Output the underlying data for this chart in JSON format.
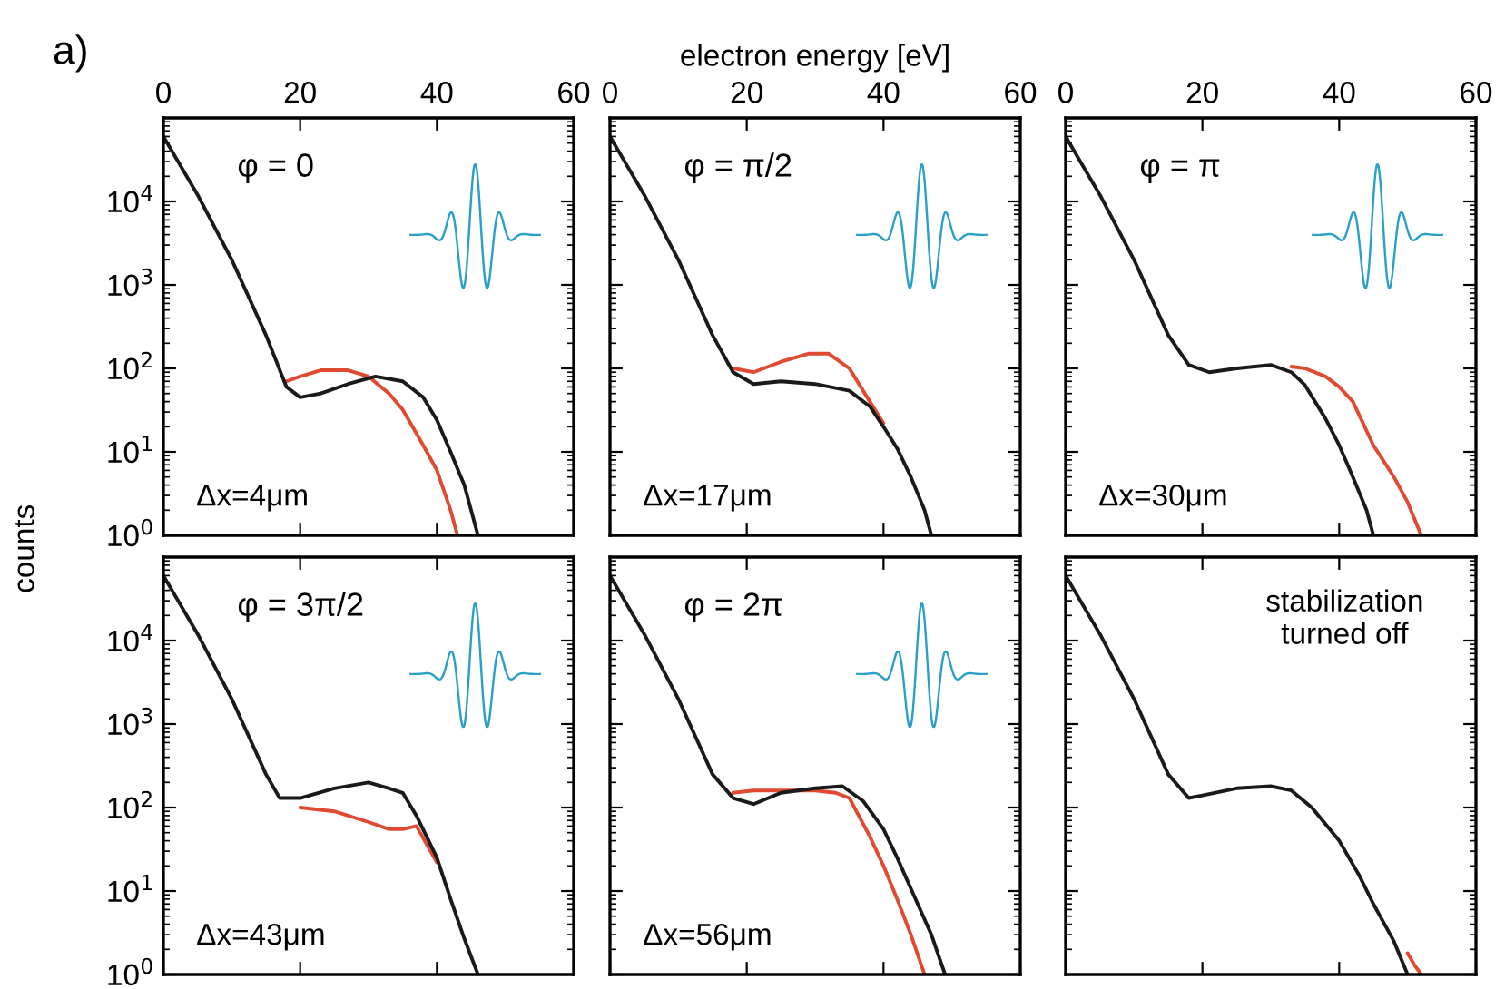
{
  "chart_data": [
    {
      "type": "line",
      "annotations": [
        "φ = 0",
        "Δx=4μm",
        "a)"
      ],
      "xlim": [
        0,
        60
      ],
      "xticks": [
        0,
        20,
        40,
        60
      ],
      "ylim": [
        1,
        100000
      ],
      "log": "y",
      "yticks": [
        {
          "value": 1,
          "label": "10$^{0}$"
        },
        {
          "value": 10,
          "label": "10$^{1}$"
        },
        {
          "value": 100,
          "label": "10$^{2}$"
        },
        {
          "value": 1000,
          "label": "10$^{3}$"
        },
        {
          "value": 10000,
          "label": "10$^{4}$"
        }
      ],
      "series": [
        {
          "color": "#e04a30",
          "x": [
            18,
            20,
            23,
            27,
            30,
            33,
            35,
            38,
            40,
            42,
            43
          ],
          "values": [
            70,
            80,
            95,
            95,
            80,
            50,
            32,
            12,
            6,
            2,
            1
          ]
        },
        {
          "color": "#1a1a1a",
          "x": [
            0,
            5,
            10,
            15,
            18,
            20,
            23,
            27,
            31,
            35,
            38,
            40,
            42,
            44,
            46
          ],
          "values": [
            60000,
            12000,
            2000,
            250,
            60,
            45,
            50,
            65,
            80,
            70,
            45,
            24,
            10,
            4,
            1
          ]
        }
      ]
    },
    {
      "type": "line",
      "xlabel": "electron energy [eV]",
      "annotations": [
        "φ = π/2",
        "Δx=17μm"
      ],
      "xlim": [
        0,
        60
      ],
      "xticks": [
        0,
        20,
        40,
        60
      ],
      "ylim": [
        1,
        100000
      ],
      "log": "y",
      "tick_labels": "x",
      "yticks": [
        {
          "value": 1,
          "label": null
        },
        {
          "value": 10,
          "label": null
        },
        {
          "value": 100,
          "label": null
        },
        {
          "value": 1000,
          "label": null
        },
        {
          "value": 10000,
          "label": null
        }
      ],
      "series": [
        {
          "color": "#e04a30",
          "x": [
            18,
            21,
            25,
            29,
            32,
            35,
            38,
            40
          ],
          "values": [
            100,
            90,
            120,
            150,
            150,
            100,
            40,
            22
          ]
        },
        {
          "color": "#1a1a1a",
          "x": [
            0,
            5,
            10,
            15,
            18,
            21,
            25,
            30,
            35,
            38,
            40,
            42,
            44,
            46,
            47
          ],
          "values": [
            60000,
            12000,
            2000,
            250,
            90,
            65,
            70,
            65,
            54,
            35,
            20,
            11,
            5,
            2,
            1
          ]
        }
      ]
    },
    {
      "type": "line",
      "annotations": [
        "φ = π",
        "Δx=30μm"
      ],
      "xlim": [
        0,
        60
      ],
      "xticks": [
        0,
        20,
        40,
        60
      ],
      "ylim": [
        1,
        100000
      ],
      "log": "y",
      "tick_labels": "x",
      "yticks": [
        {
          "value": 1,
          "label": null
        },
        {
          "value": 10,
          "label": null
        },
        {
          "value": 100,
          "label": null
        },
        {
          "value": 1000,
          "label": null
        },
        {
          "value": 10000,
          "label": null
        }
      ],
      "series": [
        {
          "color": "#e04a30",
          "x": [
            33,
            35,
            38,
            40,
            42,
            45,
            48,
            50,
            52
          ],
          "values": [
            105,
            100,
            80,
            60,
            40,
            12,
            5,
            2.5,
            1
          ]
        },
        {
          "color": "#1a1a1a",
          "x": [
            0,
            5,
            10,
            15,
            18,
            21,
            25,
            30,
            33,
            35,
            38,
            40,
            42,
            44,
            45
          ],
          "values": [
            60000,
            12000,
            2000,
            250,
            110,
            90,
            100,
            110,
            90,
            63,
            25,
            12,
            5,
            2,
            1
          ]
        }
      ]
    },
    {
      "type": "line",
      "ylabel": "counts",
      "annotations": [
        "φ = 3π/2",
        "Δx=43μm"
      ],
      "xlim": [
        0,
        60
      ],
      "xticks": [
        {
          "value": 0,
          "label": null
        },
        {
          "value": 20,
          "label": null
        },
        {
          "value": 40,
          "label": null
        },
        {
          "value": 60,
          "label": null
        }
      ],
      "ylim": [
        1,
        100000
      ],
      "log": "y",
      "tick_labels": "y",
      "yticks": [
        {
          "value": 1,
          "label": "10$^{0}$"
        },
        {
          "value": 10,
          "label": "10$^{1}$"
        },
        {
          "value": 100,
          "label": "10$^{2}$"
        },
        {
          "value": 1000,
          "label": "10$^{3}$"
        },
        {
          "value": 10000,
          "label": "10$^{4}$"
        }
      ],
      "series": [
        {
          "color": "#e04a30",
          "x": [
            20,
            25,
            30,
            33,
            35,
            37,
            40
          ],
          "values": [
            100,
            90,
            67,
            55,
            55,
            60,
            22
          ]
        },
        {
          "color": "#1a1a1a",
          "x": [
            0,
            5,
            10,
            15,
            17,
            20,
            25,
            30,
            33,
            35,
            37,
            40,
            42,
            44,
            46
          ],
          "values": [
            60000,
            12000,
            2000,
            250,
            130,
            130,
            170,
            200,
            170,
            150,
            80,
            25,
            8,
            2.7,
            1
          ]
        }
      ]
    },
    {
      "type": "line",
      "annotations": [
        "φ = 2π",
        "Δx=56μm"
      ],
      "xlim": [
        0,
        60
      ],
      "xticks": [
        {
          "value": 0,
          "label": null
        },
        {
          "value": 20,
          "label": null
        },
        {
          "value": 40,
          "label": null
        },
        {
          "value": 60,
          "label": null
        }
      ],
      "ylim": [
        1,
        100000
      ],
      "log": "y",
      "tick_labels": false,
      "yticks": [
        {
          "value": 1,
          "label": null
        },
        {
          "value": 10,
          "label": null
        },
        {
          "value": 100,
          "label": null
        },
        {
          "value": 1000,
          "label": null
        },
        {
          "value": 10000,
          "label": null
        }
      ],
      "series": [
        {
          "color": "#e04a30",
          "x": [
            18,
            21,
            25,
            30,
            33,
            35,
            38,
            40,
            42,
            44,
            46
          ],
          "values": [
            150,
            160,
            160,
            160,
            150,
            130,
            45,
            20,
            8,
            3,
            1
          ]
        },
        {
          "color": "#1a1a1a",
          "x": [
            0,
            5,
            10,
            15,
            18,
            21,
            25,
            30,
            34,
            37,
            40,
            42,
            45,
            47,
            49
          ],
          "values": [
            60000,
            12000,
            2000,
            250,
            130,
            110,
            150,
            170,
            180,
            120,
            55,
            25,
            7,
            3,
            1
          ]
        }
      ]
    },
    {
      "type": "line",
      "annotations": [
        "stabilization\nturned off"
      ],
      "xlim": [
        0,
        60
      ],
      "xticks": [
        {
          "value": 0,
          "label": null
        },
        {
          "value": 20,
          "label": null
        },
        {
          "value": 40,
          "label": null
        },
        {
          "value": 60,
          "label": null
        }
      ],
      "ylim": [
        1,
        100000
      ],
      "log": "y",
      "tick_labels": false,
      "yticks": [
        {
          "value": 1,
          "label": null
        },
        {
          "value": 10,
          "label": null
        },
        {
          "value": 100,
          "label": null
        },
        {
          "value": 1000,
          "label": null
        },
        {
          "value": 10000,
          "label": null
        }
      ],
      "series": [
        {
          "color": "#e04a30",
          "x": [
            50,
            51,
            52
          ],
          "values": [
            1.8,
            1.3,
            1
          ]
        },
        {
          "color": "#1a1a1a",
          "x": [
            0,
            5,
            10,
            15,
            18,
            20,
            25,
            30,
            33,
            36,
            40,
            43,
            45,
            48,
            50
          ],
          "values": [
            60000,
            12000,
            2000,
            250,
            130,
            140,
            170,
            180,
            160,
            100,
            40,
            15,
            7,
            2.5,
            1
          ]
        }
      ]
    }
  ]
}
